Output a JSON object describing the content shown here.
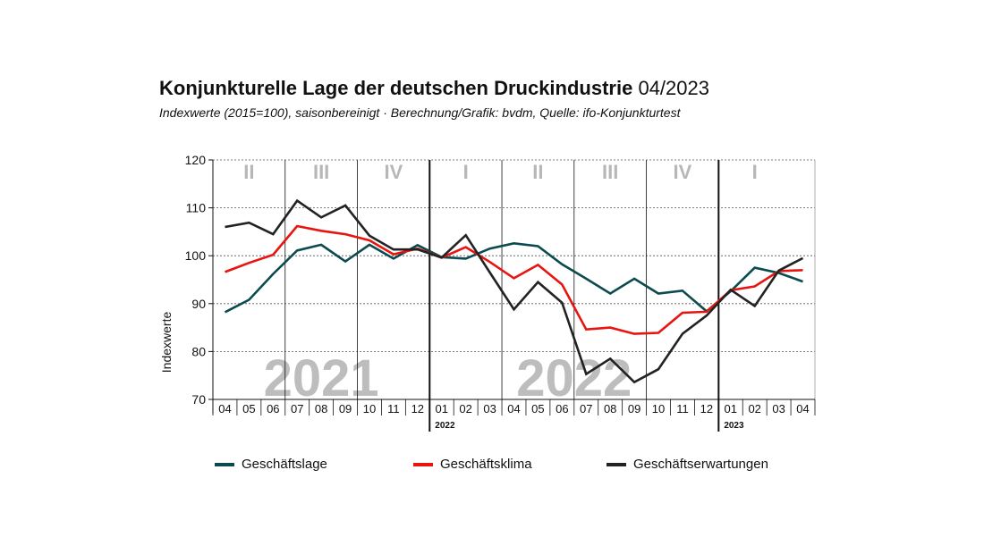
{
  "header": {
    "title_bold": "Konjunkturelle Lage der deutschen Druckindustrie",
    "title_light": "04/2023",
    "subtitle": "Indexwerte (2015=100), saisonbereinigt · Berechnung/Grafik: bvdm, Quelle: ifo-Konjunkturtest"
  },
  "chart_data": {
    "type": "line",
    "title": "Konjunkturelle Lage der deutschen Druckindustrie 04/2023",
    "ylabel": "Indexwerte",
    "ylim": [
      70,
      120
    ],
    "yticks": [
      70,
      80,
      90,
      100,
      110,
      120
    ],
    "categories": [
      "04",
      "05",
      "06",
      "07",
      "08",
      "09",
      "10",
      "11",
      "12",
      "01",
      "02",
      "03",
      "04",
      "05",
      "06",
      "07",
      "08",
      "09",
      "10",
      "11",
      "12",
      "01",
      "02",
      "03",
      "04"
    ],
    "year_labels": [
      {
        "label": "2022",
        "index": 9
      },
      {
        "label": "2023",
        "index": 21
      }
    ],
    "big_year_labels": [
      {
        "label": "2021",
        "from": 0,
        "to": 8
      },
      {
        "label": "2022",
        "from": 9,
        "to": 20
      }
    ],
    "quarters": [
      {
        "label": "II",
        "from": 0,
        "to": 2
      },
      {
        "label": "III",
        "from": 3,
        "to": 5
      },
      {
        "label": "IV",
        "from": 6,
        "to": 8
      },
      {
        "label": "I",
        "from": 9,
        "to": 11
      },
      {
        "label": "II",
        "from": 12,
        "to": 14
      },
      {
        "label": "III",
        "from": 15,
        "to": 17
      },
      {
        "label": "IV",
        "from": 18,
        "to": 20
      },
      {
        "label": "I",
        "from": 21,
        "to": 23
      }
    ],
    "year_boundaries": [
      9,
      21
    ],
    "series": [
      {
        "name": "Geschäftslage",
        "color": "#0b4a4e",
        "values": [
          88.2,
          90.8,
          96.2,
          101.1,
          102.3,
          98.8,
          102.3,
          99.4,
          102.2,
          99.7,
          99.4,
          101.5,
          102.6,
          102.0,
          98.2,
          95.2,
          92.1,
          95.2,
          92.1,
          92.7,
          88.4,
          92.6,
          97.5,
          96.4,
          94.6
        ]
      },
      {
        "name": "Geschäftsklima",
        "color": "#e8140f",
        "values": [
          96.6,
          98.5,
          100.2,
          106.2,
          105.2,
          104.5,
          103.2,
          100.3,
          101.5,
          99.6,
          101.8,
          98.7,
          95.3,
          98.1,
          94.0,
          84.6,
          85.0,
          83.7,
          83.9,
          88.1,
          88.3,
          92.8,
          93.6,
          96.8,
          97.0
        ]
      },
      {
        "name": "Geschäftserwartungen",
        "color": "#222222",
        "values": [
          106.0,
          106.9,
          104.5,
          111.5,
          108.0,
          110.5,
          104.2,
          101.3,
          101.3,
          99.6,
          104.3,
          96.5,
          88.8,
          94.5,
          90.2,
          75.3,
          78.5,
          73.6,
          76.3,
          83.7,
          87.5,
          92.9,
          89.5,
          96.9,
          99.5
        ]
      }
    ],
    "grid": true,
    "legend": "bottom"
  },
  "legend": [
    {
      "label": "Geschäftslage",
      "color": "#0b4a4e"
    },
    {
      "label": "Geschäftsklima",
      "color": "#e8140f"
    },
    {
      "label": "Geschäftserwartungen",
      "color": "#222222"
    }
  ]
}
